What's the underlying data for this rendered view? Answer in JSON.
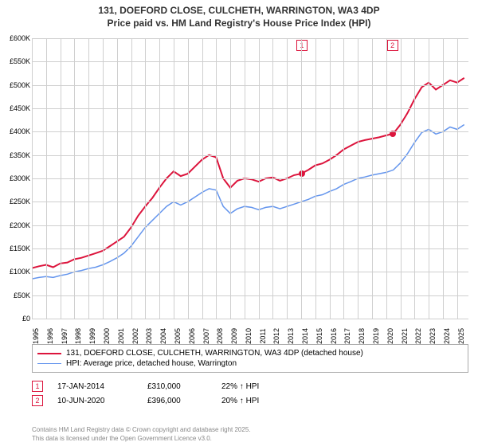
{
  "title_line1": "131, DOEFORD CLOSE, CULCHETH, WARRINGTON, WA3 4DP",
  "title_line2": "Price paid vs. HM Land Registry's House Price Index (HPI)",
  "chart": {
    "type": "line",
    "xlim": [
      1995,
      2025.8
    ],
    "ylim": [
      0,
      600
    ],
    "yticks": [
      0,
      50,
      100,
      150,
      200,
      250,
      300,
      350,
      400,
      450,
      500,
      550,
      600
    ],
    "ytick_labels": [
      "£0",
      "£50K",
      "£100K",
      "£150K",
      "£200K",
      "£250K",
      "£300K",
      "£350K",
      "£400K",
      "£450K",
      "£500K",
      "£550K",
      "£600K"
    ],
    "xticks": [
      1995,
      1996,
      1997,
      1998,
      1999,
      2000,
      2001,
      2002,
      2003,
      2004,
      2005,
      2006,
      2007,
      2008,
      2009,
      2010,
      2011,
      2012,
      2013,
      2014,
      2015,
      2016,
      2017,
      2018,
      2019,
      2020,
      2021,
      2022,
      2023,
      2024,
      2025
    ],
    "grid_color": "#cfcfcf",
    "background_color": "#ffffff",
    "series": [
      {
        "name": "price_paid",
        "label": "131, DOEFORD CLOSE, CULCHETH, WARRINGTON, WA3 4DP (detached house)",
        "color": "#dc143c",
        "line_width": 2,
        "data": [
          [
            1995,
            108
          ],
          [
            1995.5,
            112
          ],
          [
            1996,
            115
          ],
          [
            1996.5,
            110
          ],
          [
            1997,
            118
          ],
          [
            1997.5,
            120
          ],
          [
            1998,
            127
          ],
          [
            1998.5,
            130
          ],
          [
            1999,
            135
          ],
          [
            1999.5,
            140
          ],
          [
            2000,
            145
          ],
          [
            2000.5,
            155
          ],
          [
            2001,
            165
          ],
          [
            2001.5,
            175
          ],
          [
            2002,
            195
          ],
          [
            2002.5,
            220
          ],
          [
            2003,
            240
          ],
          [
            2003.5,
            258
          ],
          [
            2004,
            280
          ],
          [
            2004.5,
            300
          ],
          [
            2005,
            315
          ],
          [
            2005.5,
            305
          ],
          [
            2006,
            310
          ],
          [
            2006.5,
            325
          ],
          [
            2007,
            340
          ],
          [
            2007.5,
            350
          ],
          [
            2008,
            345
          ],
          [
            2008.5,
            300
          ],
          [
            2009,
            280
          ],
          [
            2009.5,
            295
          ],
          [
            2010,
            300
          ],
          [
            2010.5,
            298
          ],
          [
            2011,
            293
          ],
          [
            2011.5,
            300
          ],
          [
            2012,
            302
          ],
          [
            2012.5,
            295
          ],
          [
            2013,
            300
          ],
          [
            2013.5,
            307
          ],
          [
            2014,
            310
          ],
          [
            2014.5,
            318
          ],
          [
            2015,
            328
          ],
          [
            2015.5,
            332
          ],
          [
            2016,
            340
          ],
          [
            2016.5,
            350
          ],
          [
            2017,
            362
          ],
          [
            2017.5,
            370
          ],
          [
            2018,
            378
          ],
          [
            2018.5,
            382
          ],
          [
            2019,
            385
          ],
          [
            2019.5,
            388
          ],
          [
            2020,
            392
          ],
          [
            2020.5,
            396
          ],
          [
            2021,
            415
          ],
          [
            2021.5,
            440
          ],
          [
            2022,
            470
          ],
          [
            2022.5,
            495
          ],
          [
            2023,
            505
          ],
          [
            2023.5,
            490
          ],
          [
            2024,
            500
          ],
          [
            2024.5,
            510
          ],
          [
            2025,
            505
          ],
          [
            2025.5,
            515
          ]
        ]
      },
      {
        "name": "hpi",
        "label": "HPI: Average price, detached house, Warrington",
        "color": "#6495ed",
        "line_width": 1.5,
        "data": [
          [
            1995,
            85
          ],
          [
            1995.5,
            88
          ],
          [
            1996,
            90
          ],
          [
            1996.5,
            88
          ],
          [
            1997,
            92
          ],
          [
            1997.5,
            95
          ],
          [
            1998,
            100
          ],
          [
            1998.5,
            103
          ],
          [
            1999,
            107
          ],
          [
            1999.5,
            110
          ],
          [
            2000,
            115
          ],
          [
            2000.5,
            122
          ],
          [
            2001,
            130
          ],
          [
            2001.5,
            140
          ],
          [
            2002,
            155
          ],
          [
            2002.5,
            175
          ],
          [
            2003,
            195
          ],
          [
            2003.5,
            210
          ],
          [
            2004,
            225
          ],
          [
            2004.5,
            240
          ],
          [
            2005,
            250
          ],
          [
            2005.5,
            243
          ],
          [
            2006,
            250
          ],
          [
            2006.5,
            260
          ],
          [
            2007,
            270
          ],
          [
            2007.5,
            278
          ],
          [
            2008,
            275
          ],
          [
            2008.5,
            240
          ],
          [
            2009,
            225
          ],
          [
            2009.5,
            235
          ],
          [
            2010,
            240
          ],
          [
            2010.5,
            238
          ],
          [
            2011,
            233
          ],
          [
            2011.5,
            238
          ],
          [
            2012,
            240
          ],
          [
            2012.5,
            235
          ],
          [
            2013,
            240
          ],
          [
            2013.5,
            245
          ],
          [
            2014,
            250
          ],
          [
            2014.5,
            255
          ],
          [
            2015,
            262
          ],
          [
            2015.5,
            265
          ],
          [
            2016,
            272
          ],
          [
            2016.5,
            278
          ],
          [
            2017,
            287
          ],
          [
            2017.5,
            293
          ],
          [
            2018,
            300
          ],
          [
            2018.5,
            303
          ],
          [
            2019,
            307
          ],
          [
            2019.5,
            310
          ],
          [
            2020,
            313
          ],
          [
            2020.5,
            318
          ],
          [
            2021,
            333
          ],
          [
            2021.5,
            353
          ],
          [
            2022,
            377
          ],
          [
            2022.5,
            398
          ],
          [
            2023,
            405
          ],
          [
            2023.5,
            395
          ],
          [
            2024,
            400
          ],
          [
            2024.5,
            410
          ],
          [
            2025,
            405
          ],
          [
            2025.5,
            415
          ]
        ]
      }
    ],
    "markers": [
      {
        "num": "1",
        "x": 2014.05,
        "y": 310
      },
      {
        "num": "2",
        "x": 2020.44,
        "y": 396
      }
    ]
  },
  "legend": [
    {
      "color": "#dc143c",
      "width": 2,
      "label": "131, DOEFORD CLOSE, CULCHETH, WARRINGTON, WA3 4DP (detached house)"
    },
    {
      "color": "#6495ed",
      "width": 1.5,
      "label": "HPI: Average price, detached house, Warrington"
    }
  ],
  "transactions": [
    {
      "num": "1",
      "date": "17-JAN-2014",
      "price": "£310,000",
      "diff": "22% ↑ HPI"
    },
    {
      "num": "2",
      "date": "10-JUN-2020",
      "price": "£396,000",
      "diff": "20% ↑ HPI"
    }
  ],
  "footer_line1": "Contains HM Land Registry data © Crown copyright and database right 2025.",
  "footer_line2": "This data is licensed under the Open Government Licence v3.0."
}
